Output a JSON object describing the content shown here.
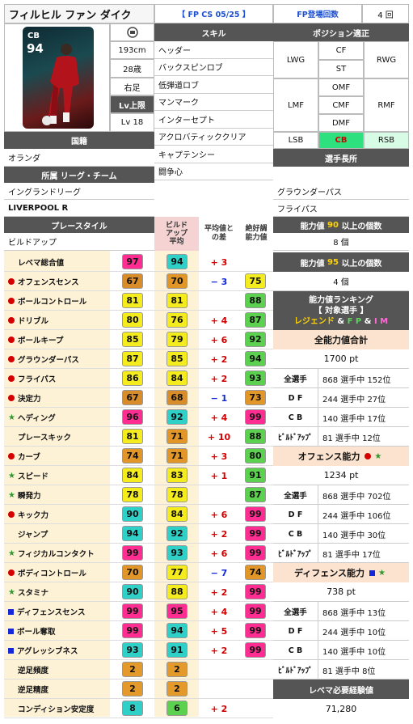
{
  "player": {
    "name": "フィルヒル ファン ダイク",
    "card_type": "【 FP CS 05/25 】",
    "fp_label": "FP登場回数",
    "fp_count": "4 回",
    "position_badge": "CB",
    "rating_badge": "94",
    "height": "193cm",
    "age": "28歳",
    "foot": "右足",
    "lv_max_label": "Lv上限",
    "lv": "Lv 18"
  },
  "skills": {
    "header": "スキル",
    "items": [
      "ヘッダー",
      "バックスピンロブ",
      "低弾道ロブ",
      "マンマーク",
      "インターセプト",
      "アクロバティッククリア",
      "キャプテンシー",
      "闘争心"
    ]
  },
  "position": {
    "header": "ポジション適正",
    "cells": [
      "CF",
      "ST",
      "LWG",
      "RWG",
      "OMF",
      "CMF",
      "DMF",
      "LMF",
      "RMF",
      "LSB",
      "CB",
      "RSB"
    ]
  },
  "nationality": {
    "header": "国籍",
    "value": "オランダ"
  },
  "affiliation": {
    "header": "所属 リーグ・チーム",
    "league": "イングランドリーグ",
    "team": "LIVERPOOL R"
  },
  "strengths": {
    "header": "選手長所",
    "items": [
      "グラウンダーパス",
      "フライパス"
    ]
  },
  "playstyle": {
    "header": "プレースタイル",
    "value": "ビルドアップ",
    "buildup_header": "ビルド\nアップ\n平均",
    "diff_header": "平均値との差",
    "best_header": "絶好調能力値"
  },
  "count90": {
    "label_a": "能力値",
    "num": "90",
    "label_b": "以上の個数",
    "value": "8 個"
  },
  "count95": {
    "label_a": "能力値",
    "num": "95",
    "label_b": "以上の個数",
    "value": "4 個"
  },
  "stats": [
    {
      "name": "レベマ総合値",
      "marker": "",
      "val": "97",
      "avg": "94",
      "diff": "+ 3",
      "diffc": "red",
      "best": ""
    },
    {
      "name": "オフェンスセンス",
      "marker": "dot",
      "val": "67",
      "avg": "70",
      "diff": "− 3",
      "diffc": "blue",
      "best": "75"
    },
    {
      "name": "ボールコントロール",
      "marker": "dot",
      "val": "81",
      "avg": "81",
      "diff": "",
      "diffc": "",
      "best": "88"
    },
    {
      "name": "ドリブル",
      "marker": "dot",
      "val": "80",
      "avg": "76",
      "diff": "+ 4",
      "diffc": "red",
      "best": "87"
    },
    {
      "name": "ボールキープ",
      "marker": "dot",
      "val": "85",
      "avg": "79",
      "diff": "+ 6",
      "diffc": "red",
      "best": "92"
    },
    {
      "name": "グラウンダーパス",
      "marker": "dot",
      "val": "87",
      "avg": "85",
      "diff": "+ 2",
      "diffc": "red",
      "best": "94"
    },
    {
      "name": "フライパス",
      "marker": "dot",
      "val": "86",
      "avg": "84",
      "diff": "+ 2",
      "diffc": "red",
      "best": "93"
    },
    {
      "name": "決定力",
      "marker": "dot",
      "val": "67",
      "avg": "68",
      "diff": "− 1",
      "diffc": "blue",
      "best": "73"
    },
    {
      "name": "ヘディング",
      "marker": "star",
      "val": "96",
      "avg": "92",
      "diff": "+ 4",
      "diffc": "red",
      "best": "99"
    },
    {
      "name": "プレースキック",
      "marker": "",
      "val": "81",
      "avg": "71",
      "diff": "+ 10",
      "diffc": "red",
      "best": "88"
    },
    {
      "name": "カーブ",
      "marker": "dot",
      "val": "74",
      "avg": "71",
      "diff": "+ 3",
      "diffc": "red",
      "best": "80"
    },
    {
      "name": "スピード",
      "marker": "star",
      "val": "84",
      "avg": "83",
      "diff": "+ 1",
      "diffc": "red",
      "best": "91"
    },
    {
      "name": "瞬発力",
      "marker": "star",
      "val": "78",
      "avg": "78",
      "diff": "",
      "diffc": "",
      "best": "87"
    },
    {
      "name": "キック力",
      "marker": "dot",
      "val": "90",
      "avg": "84",
      "diff": "+ 6",
      "diffc": "red",
      "best": "99"
    },
    {
      "name": "ジャンプ",
      "marker": "",
      "val": "94",
      "avg": "92",
      "diff": "+ 2",
      "diffc": "red",
      "best": "99"
    },
    {
      "name": "フィジカルコンタクト",
      "marker": "star",
      "val": "99",
      "avg": "93",
      "diff": "+ 6",
      "diffc": "red",
      "best": "99"
    },
    {
      "name": "ボディコントロール",
      "marker": "dot",
      "val": "70",
      "avg": "77",
      "diff": "− 7",
      "diffc": "blue",
      "best": "74"
    },
    {
      "name": "スタミナ",
      "marker": "star",
      "val": "90",
      "avg": "88",
      "diff": "+ 2",
      "diffc": "red",
      "best": "99"
    },
    {
      "name": "ディフェンスセンス",
      "marker": "sq",
      "val": "99",
      "avg": "95",
      "diff": "+ 4",
      "diffc": "red",
      "best": "99"
    },
    {
      "name": "ボール奪取",
      "marker": "sq",
      "val": "99",
      "avg": "94",
      "diff": "+ 5",
      "diffc": "red",
      "best": "99"
    },
    {
      "name": "アグレッシブネス",
      "marker": "sq",
      "val": "93",
      "avg": "91",
      "diff": "+ 2",
      "diffc": "red",
      "best": "99"
    },
    {
      "name": "逆足頻度",
      "marker": "",
      "val": "2",
      "avg": "2",
      "diff": "",
      "diffc": "",
      "best": ""
    },
    {
      "name": "逆足精度",
      "marker": "",
      "val": "2",
      "avg": "2",
      "diff": "",
      "diffc": "",
      "best": ""
    },
    {
      "name": "コンディション安定度",
      "marker": "",
      "val": "8",
      "avg": "6",
      "diff": "+ 2",
      "diffc": "red",
      "best": ""
    }
  ],
  "ranking": {
    "title": "能力値ランキング",
    "subtitle": "【 対象選手 】",
    "legend": "レジェンド",
    "fp": "F P",
    "im": "I M",
    "amp": "&"
  },
  "total": {
    "header": "全能力値合計",
    "value": "1700 pt",
    "rows": [
      {
        "label": "全選手",
        "value": "868 選手中 152位"
      },
      {
        "label": "D F",
        "value": "244 選手中 27位"
      },
      {
        "label": "C B",
        "value": "140 選手中 17位"
      },
      {
        "label": "ﾋﾞﾙﾄﾞｱｯﾌﾟ",
        "value": "81 選手中 12位"
      }
    ]
  },
  "offense": {
    "header": "オフェンス能力",
    "value": "1234 pt",
    "rows": [
      {
        "label": "全選手",
        "value": "868 選手中 702位"
      },
      {
        "label": "D F",
        "value": "244 選手中 106位"
      },
      {
        "label": "C B",
        "value": "140 選手中 30位"
      },
      {
        "label": "ﾋﾞﾙﾄﾞｱｯﾌﾟ",
        "value": "81 選手中 17位"
      }
    ]
  },
  "defense": {
    "header": "ディフェンス能力",
    "value": "738 pt",
    "rows": [
      {
        "label": "全選手",
        "value": "868 選手中 13位"
      },
      {
        "label": "D F",
        "value": "244 選手中 10位"
      },
      {
        "label": "C B",
        "value": "140 選手中 10位"
      },
      {
        "label": "ﾋﾞﾙﾄﾞｱｯﾌﾟ",
        "value": "81 選手中 8位"
      }
    ]
  },
  "exp": {
    "header": "レベマ必要経験値",
    "value": "71,280"
  }
}
